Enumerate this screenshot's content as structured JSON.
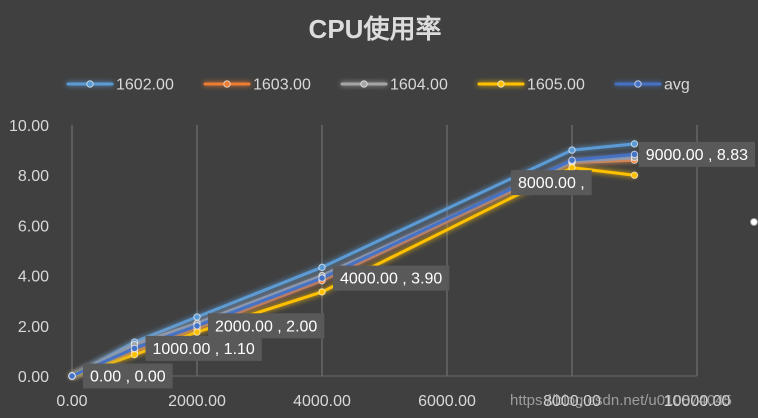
{
  "chart_data": {
    "type": "line",
    "title": "CPU使用率",
    "x": [
      0,
      1000,
      2000,
      4000,
      8000,
      9000
    ],
    "xlim": [
      0,
      10000
    ],
    "ylim": [
      0,
      10
    ],
    "x_ticks": [
      0,
      2000,
      4000,
      6000,
      8000,
      10000
    ],
    "x_tick_labels": [
      "0.00",
      "2000.00",
      "4000.00",
      "6000.00",
      "8000.00",
      "10000.00"
    ],
    "y_ticks": [
      0,
      2,
      4,
      6,
      8,
      10
    ],
    "y_tick_labels": [
      "0.00",
      "2.00",
      "4.00",
      "6.00",
      "8.00",
      "10.00"
    ],
    "grid": "vertical",
    "legend": "top",
    "background": "#404040",
    "series": [
      {
        "name": "1602.00",
        "color": "#5B9BD5",
        "values": [
          0,
          1.35,
          2.35,
          4.33,
          9.0,
          9.25
        ]
      },
      {
        "name": "1603.00",
        "color": "#ED7D31",
        "values": [
          0,
          1.0,
          1.9,
          3.8,
          8.5,
          8.6
        ]
      },
      {
        "name": "1604.00",
        "color": "#A5A5A5",
        "values": [
          0,
          1.25,
          2.1,
          4.0,
          8.55,
          8.7
        ]
      },
      {
        "name": "1605.00",
        "color": "#FFC000",
        "values": [
          0,
          0.85,
          1.75,
          3.35,
          8.3,
          8.0
        ]
      },
      {
        "name": "avg",
        "color": "#4472C4",
        "values": [
          0,
          1.1,
          2.0,
          3.9,
          8.6,
          8.83
        ],
        "data_labels": [
          "0.00 , 0.00",
          "1000.00 , 1.10",
          "2000.00 , 2.00",
          "4000.00 , 3.90",
          "8000.00 ,",
          "9000.00 , 8.83"
        ]
      }
    ]
  },
  "watermark": "https://blog.csdn.net/u010874045"
}
